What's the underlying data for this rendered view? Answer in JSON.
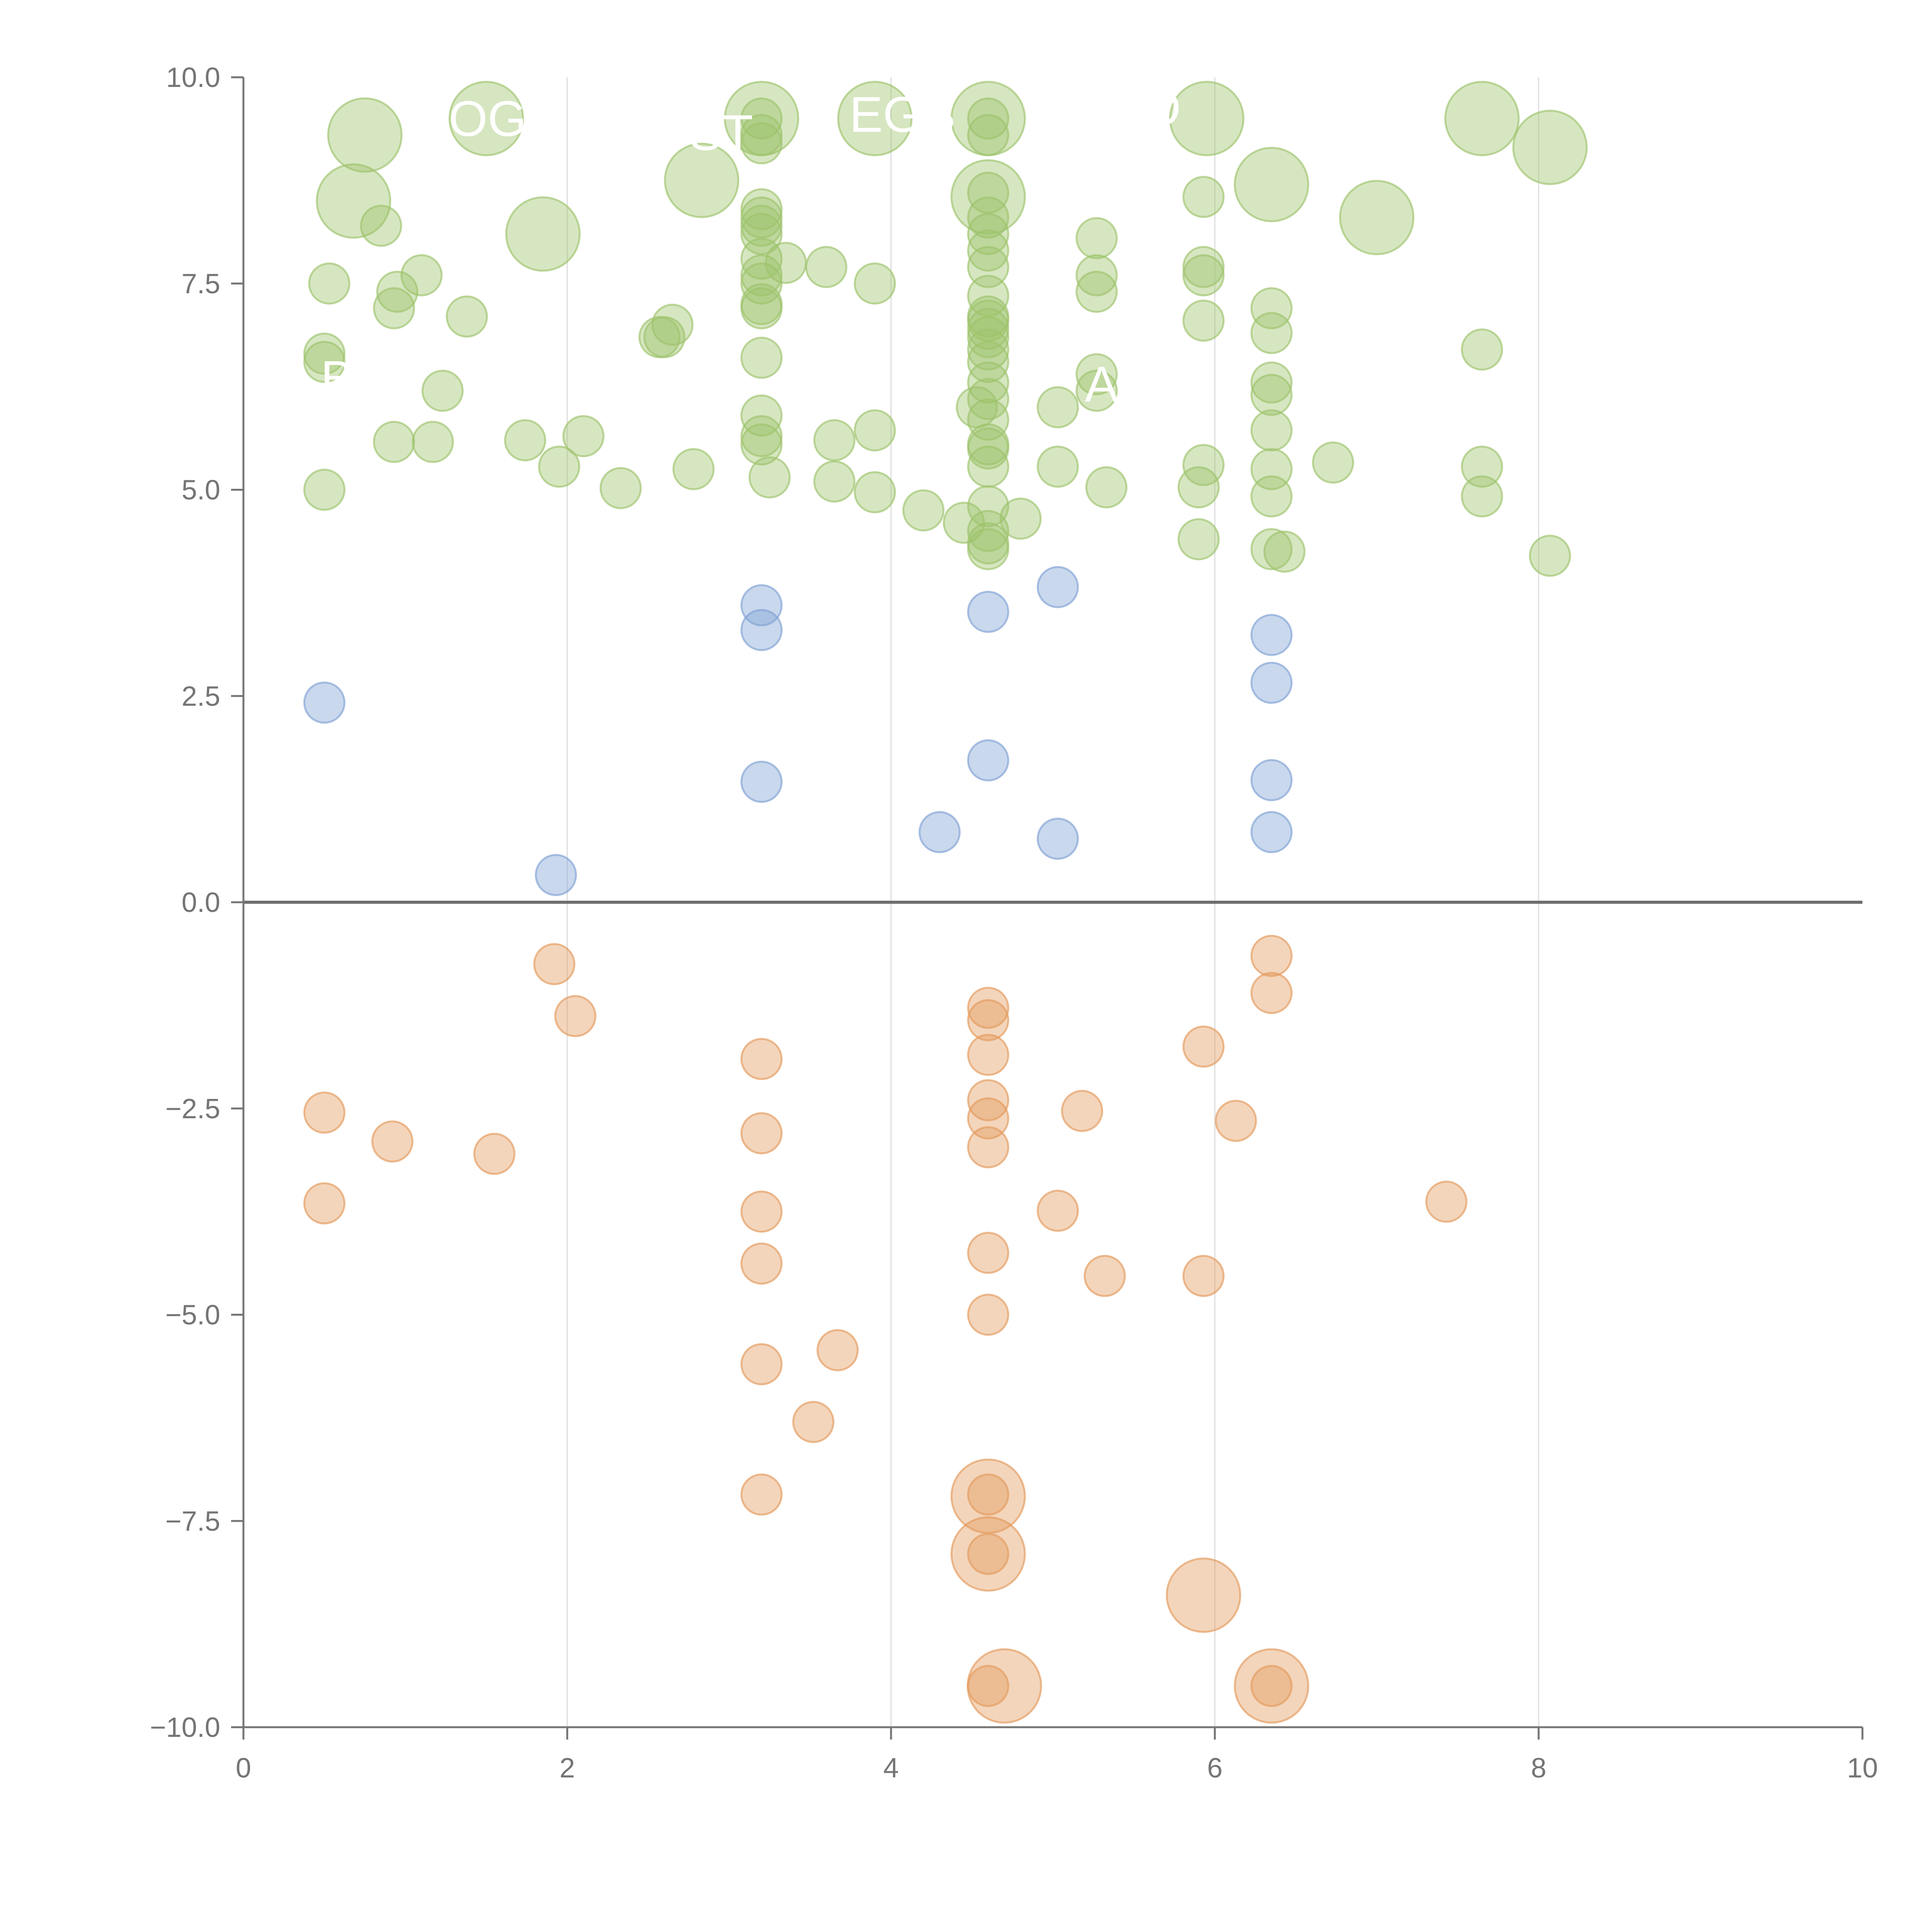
{
  "chart_data": {
    "type": "scatter",
    "title": "",
    "xlabel": "",
    "ylabel": "",
    "xlim": [
      0,
      10
    ],
    "ylim": [
      -10,
      10
    ],
    "x_ticks": [
      0,
      2,
      4,
      6,
      8,
      10
    ],
    "y_ticks": [
      -10,
      -7.5,
      -5,
      -2.5,
      0,
      2.5,
      5,
      7.5,
      10
    ],
    "x_tick_labels": [
      "0",
      "2",
      "4",
      "6",
      "8",
      "10"
    ],
    "y_tick_labels": [
      "−10.0",
      "−7.5",
      "−5.0",
      "−2.5",
      "0.0",
      "2.5",
      "5.0",
      "7.5",
      "10.0"
    ],
    "grid": "vertical",
    "zero_line": true,
    "colors": {
      "high": "#9dc36b",
      "mid": "#7fa2d4",
      "low": "#e39a5c",
      "axis": "#757575",
      "grid": "#dddddd",
      "zero_line": "#6e6e6e"
    },
    "series": [
      {
        "name": "high",
        "color": "#9dc36b",
        "points": [
          [
            0.75,
            9.3,
            2
          ],
          [
            1.5,
            9.5,
            2
          ],
          [
            3.2,
            9.5,
            2
          ],
          [
            3.9,
            9.5,
            2
          ],
          [
            4.6,
            9.5,
            2
          ],
          [
            5.95,
            9.5,
            2
          ],
          [
            7.65,
            9.5,
            2
          ],
          [
            0.68,
            8.5,
            2
          ],
          [
            2.83,
            8.75,
            2
          ],
          [
            1.85,
            8.1,
            2
          ],
          [
            4.6,
            8.55,
            2
          ],
          [
            6.35,
            8.7,
            2
          ],
          [
            7.0,
            8.3,
            2
          ],
          [
            8.07,
            9.15,
            2
          ],
          [
            3.2,
            9.5,
            1
          ],
          [
            3.2,
            9.3,
            1
          ],
          [
            3.2,
            9.2,
            1
          ],
          [
            4.6,
            9.5,
            1
          ],
          [
            4.6,
            9.3,
            1
          ],
          [
            0.85,
            8.2,
            1
          ],
          [
            3.2,
            8.4,
            1
          ],
          [
            3.2,
            8.3,
            1
          ],
          [
            3.2,
            8.2,
            1
          ],
          [
            3.2,
            8.1,
            1
          ],
          [
            4.6,
            8.6,
            1
          ],
          [
            4.6,
            8.3,
            1
          ],
          [
            4.6,
            8.1,
            1
          ],
          [
            5.27,
            8.05,
            1
          ],
          [
            5.93,
            8.55,
            1
          ],
          [
            0.53,
            7.5,
            1
          ],
          [
            0.95,
            7.4,
            1
          ],
          [
            1.1,
            7.6,
            1
          ],
          [
            0.93,
            7.2,
            1
          ],
          [
            1.38,
            7.1,
            1
          ],
          [
            3.2,
            7.8,
            1
          ],
          [
            3.2,
            7.6,
            1
          ],
          [
            3.2,
            7.5,
            1
          ],
          [
            3.2,
            7.25,
            1
          ],
          [
            3.2,
            7.2,
            1
          ],
          [
            3.35,
            7.75,
            1
          ],
          [
            3.6,
            7.7,
            1
          ],
          [
            3.9,
            7.5,
            1
          ],
          [
            4.6,
            7.9,
            1
          ],
          [
            4.6,
            7.7,
            1
          ],
          [
            4.6,
            7.35,
            1
          ],
          [
            4.6,
            7.1,
            1
          ],
          [
            4.6,
            7.05,
            1
          ],
          [
            4.6,
            6.95,
            1
          ],
          [
            4.6,
            6.85,
            1
          ],
          [
            4.6,
            6.7,
            1
          ],
          [
            5.27,
            7.6,
            1
          ],
          [
            5.27,
            7.4,
            1
          ],
          [
            5.93,
            7.7,
            1
          ],
          [
            5.93,
            7.6,
            1
          ],
          [
            5.93,
            7.05,
            1
          ],
          [
            6.35,
            7.2,
            1
          ],
          [
            6.35,
            6.9,
            1
          ],
          [
            0.5,
            6.65,
            1
          ],
          [
            0.5,
            6.55,
            1
          ],
          [
            1.23,
            6.2,
            1
          ],
          [
            2.57,
            6.85,
            1
          ],
          [
            2.6,
            6.85,
            1
          ],
          [
            2.65,
            7.0,
            1
          ],
          [
            3.2,
            6.6,
            1
          ],
          [
            4.6,
            6.55,
            1
          ],
          [
            4.6,
            6.3,
            1
          ],
          [
            4.6,
            6.1,
            1
          ],
          [
            4.53,
            6.0,
            1
          ],
          [
            5.27,
            6.4,
            1
          ],
          [
            5.27,
            6.2,
            1
          ],
          [
            5.03,
            6.0,
            1
          ],
          [
            6.35,
            6.3,
            1
          ],
          [
            6.35,
            6.15,
            1
          ],
          [
            7.65,
            6.7,
            1
          ],
          [
            0.93,
            5.58,
            1
          ],
          [
            1.17,
            5.58,
            1
          ],
          [
            1.74,
            5.6,
            1
          ],
          [
            2.1,
            5.65,
            1
          ],
          [
            1.95,
            5.28,
            1
          ],
          [
            2.78,
            5.25,
            1
          ],
          [
            3.2,
            5.9,
            1
          ],
          [
            3.2,
            5.65,
            1
          ],
          [
            3.2,
            5.55,
            1
          ],
          [
            3.25,
            5.15,
            1
          ],
          [
            3.65,
            5.6,
            1
          ],
          [
            3.65,
            5.1,
            1
          ],
          [
            3.9,
            5.72,
            1
          ],
          [
            3.9,
            4.97,
            1
          ],
          [
            4.6,
            5.85,
            1
          ],
          [
            4.6,
            5.55,
            1
          ],
          [
            4.6,
            5.5,
            1
          ],
          [
            4.6,
            5.28,
            1
          ],
          [
            5.03,
            5.28,
            1
          ],
          [
            5.33,
            5.03,
            1
          ],
          [
            5.93,
            5.3,
            1
          ],
          [
            5.9,
            5.03,
            1
          ],
          [
            6.35,
            5.72,
            1
          ],
          [
            6.35,
            5.25,
            1
          ],
          [
            6.35,
            4.92,
            1
          ],
          [
            6.73,
            5.33,
            1
          ],
          [
            7.65,
            5.28,
            1
          ],
          [
            7.65,
            4.92,
            1
          ],
          [
            0.5,
            5.0,
            1
          ],
          [
            2.33,
            5.02,
            1
          ],
          [
            4.2,
            4.75,
            1
          ],
          [
            4.45,
            4.6,
            1
          ],
          [
            4.6,
            4.8,
            1
          ],
          [
            4.6,
            4.5,
            1
          ],
          [
            4.6,
            4.35,
            1
          ],
          [
            4.6,
            4.28,
            1
          ],
          [
            4.8,
            4.65,
            1
          ],
          [
            5.9,
            4.4,
            1
          ],
          [
            6.35,
            4.28,
            1
          ],
          [
            6.43,
            4.25,
            1
          ],
          [
            8.07,
            4.2,
            1
          ]
        ]
      },
      {
        "name": "mid",
        "color": "#7fa2d4",
        "points": [
          [
            0.5,
            2.42,
            1
          ],
          [
            1.93,
            0.33,
            1
          ],
          [
            3.2,
            3.6,
            1
          ],
          [
            3.2,
            3.3,
            1
          ],
          [
            3.2,
            1.46,
            1
          ],
          [
            4.3,
            0.85,
            1
          ],
          [
            4.6,
            3.52,
            1
          ],
          [
            4.6,
            1.72,
            1
          ],
          [
            5.03,
            3.82,
            1
          ],
          [
            5.03,
            0.77,
            1
          ],
          [
            6.35,
            3.24,
            1
          ],
          [
            6.35,
            2.66,
            1
          ],
          [
            6.35,
            1.48,
            1
          ],
          [
            6.35,
            0.85,
            1
          ]
        ]
      },
      {
        "name": "low",
        "color": "#e39a5c",
        "points": [
          [
            1.92,
            -0.75,
            1
          ],
          [
            2.05,
            -1.38,
            1
          ],
          [
            0.5,
            -2.55,
            1
          ],
          [
            0.92,
            -2.9,
            1
          ],
          [
            1.55,
            -3.05,
            1
          ],
          [
            0.5,
            -3.65,
            1
          ],
          [
            3.2,
            -1.9,
            1
          ],
          [
            3.2,
            -2.8,
            1
          ],
          [
            3.2,
            -3.75,
            1
          ],
          [
            3.2,
            -4.38,
            1
          ],
          [
            3.2,
            -5.6,
            1
          ],
          [
            3.2,
            -7.18,
            1
          ],
          [
            3.52,
            -6.3,
            1
          ],
          [
            3.67,
            -5.43,
            1
          ],
          [
            4.6,
            -1.28,
            1
          ],
          [
            4.6,
            -1.43,
            1
          ],
          [
            4.6,
            -1.85,
            1
          ],
          [
            4.6,
            -2.4,
            1
          ],
          [
            4.6,
            -2.62,
            1
          ],
          [
            4.6,
            -2.97,
            1
          ],
          [
            4.6,
            -4.25,
            1
          ],
          [
            4.6,
            -5.0,
            1
          ],
          [
            4.6,
            -7.18,
            1
          ],
          [
            4.6,
            -7.9,
            1
          ],
          [
            4.6,
            -9.5,
            1
          ],
          [
            5.03,
            -3.74,
            1
          ],
          [
            5.18,
            -2.53,
            1
          ],
          [
            5.32,
            -4.53,
            1
          ],
          [
            5.93,
            -1.75,
            1
          ],
          [
            5.93,
            -4.53,
            1
          ],
          [
            6.13,
            -2.65,
            1
          ],
          [
            6.35,
            -0.65,
            1
          ],
          [
            6.35,
            -1.1,
            1
          ],
          [
            6.35,
            -9.5,
            1
          ],
          [
            7.43,
            -3.63,
            1
          ],
          [
            4.6,
            -7.2,
            2
          ],
          [
            4.6,
            -7.9,
            2
          ],
          [
            4.7,
            -9.5,
            2
          ],
          [
            5.93,
            -8.4,
            2
          ],
          [
            6.35,
            -9.5,
            2
          ]
        ]
      }
    ],
    "annotations": [
      {
        "text": "DOGE",
        "x": 1.5,
        "y": 9.5
      },
      {
        "text": "ST",
        "x": 2.95,
        "y": 9.33
      },
      {
        "text": "EGS",
        "x": 4.07,
        "y": 9.55
      },
      {
        "text": "O",
        "x": 5.67,
        "y": 9.63
      },
      {
        "text": "A",
        "x": 5.3,
        "y": 6.28
      },
      {
        "text": "B",
        "x": 0.58,
        "y": 6.35
      }
    ]
  }
}
